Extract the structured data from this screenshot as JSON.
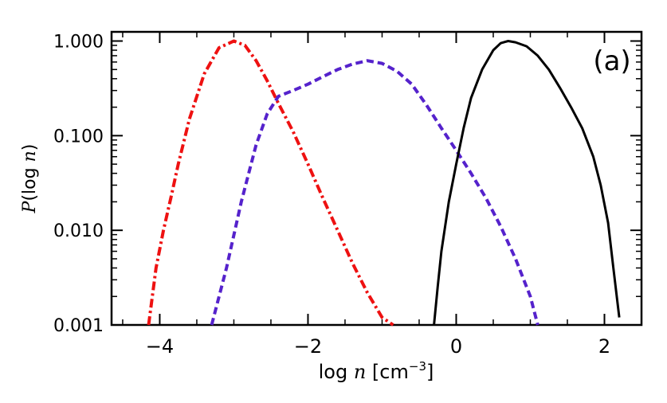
{
  "chart_data": {
    "type": "line",
    "panel_label": "(a)",
    "xlabel": "log n [cm^-3]",
    "xlabel_parts": {
      "pre": "log ",
      "var": "n",
      "unit_open": " [cm",
      "exp": "−3",
      "unit_close": "]"
    },
    "ylabel": "P(log n)",
    "ylabel_parts": {
      "sym": "P",
      "mid": "(log ",
      "var": "n",
      "close": ")"
    },
    "xlim": [
      -4.65,
      2.5
    ],
    "ylim": [
      0.001,
      1.25
    ],
    "yscale": "log",
    "xticks": [
      {
        "value": -4,
        "label": "−4"
      },
      {
        "value": -2,
        "label": "−2"
      },
      {
        "value": 0,
        "label": "0"
      },
      {
        "value": 2,
        "label": "2"
      }
    ],
    "yticks": [
      {
        "value": 0.001,
        "label": "0.001"
      },
      {
        "value": 0.01,
        "label": "0.010"
      },
      {
        "value": 0.1,
        "label": "0.100"
      },
      {
        "value": 1.0,
        "label": "1.000"
      }
    ],
    "grid": false,
    "series": [
      {
        "style": "dash-dot",
        "color": "#ee1111",
        "x": [
          -4.15,
          -4.05,
          -3.95,
          -3.85,
          -3.75,
          -3.6,
          -3.4,
          -3.2,
          -3.0,
          -2.85,
          -2.7,
          -2.55,
          -2.4,
          -2.2,
          -2.0,
          -1.8,
          -1.6,
          -1.4,
          -1.2,
          -1.0,
          -0.85
        ],
        "y": [
          0.001,
          0.004,
          0.01,
          0.022,
          0.05,
          0.15,
          0.45,
          0.85,
          1.0,
          0.9,
          0.62,
          0.38,
          0.22,
          0.11,
          0.05,
          0.022,
          0.01,
          0.0045,
          0.0022,
          0.0012,
          0.001
        ]
      },
      {
        "style": "dashed",
        "color": "#5522cc",
        "x": [
          -3.3,
          -3.1,
          -2.9,
          -2.7,
          -2.55,
          -2.4,
          -2.2,
          -2.0,
          -1.8,
          -1.6,
          -1.4,
          -1.2,
          -1.0,
          -0.8,
          -0.6,
          -0.4,
          -0.2,
          0.0,
          0.2,
          0.4,
          0.6,
          0.8,
          1.0,
          1.1
        ],
        "y": [
          0.001,
          0.004,
          0.02,
          0.08,
          0.17,
          0.26,
          0.3,
          0.35,
          0.42,
          0.5,
          0.57,
          0.62,
          0.58,
          0.48,
          0.35,
          0.21,
          0.12,
          0.07,
          0.04,
          0.022,
          0.011,
          0.005,
          0.002,
          0.001
        ]
      },
      {
        "style": "solid",
        "color": "#000000",
        "x": [
          -0.3,
          -0.25,
          -0.2,
          -0.1,
          0.0,
          0.1,
          0.2,
          0.35,
          0.5,
          0.6,
          0.7,
          0.8,
          0.95,
          1.1,
          1.25,
          1.4,
          1.55,
          1.7,
          1.85,
          1.95,
          2.05,
          2.12,
          2.2
        ],
        "y": [
          0.001,
          0.0025,
          0.006,
          0.02,
          0.05,
          0.12,
          0.25,
          0.5,
          0.8,
          0.95,
          1.0,
          0.97,
          0.88,
          0.7,
          0.5,
          0.32,
          0.2,
          0.12,
          0.06,
          0.03,
          0.012,
          0.004,
          0.0012
        ]
      }
    ]
  }
}
